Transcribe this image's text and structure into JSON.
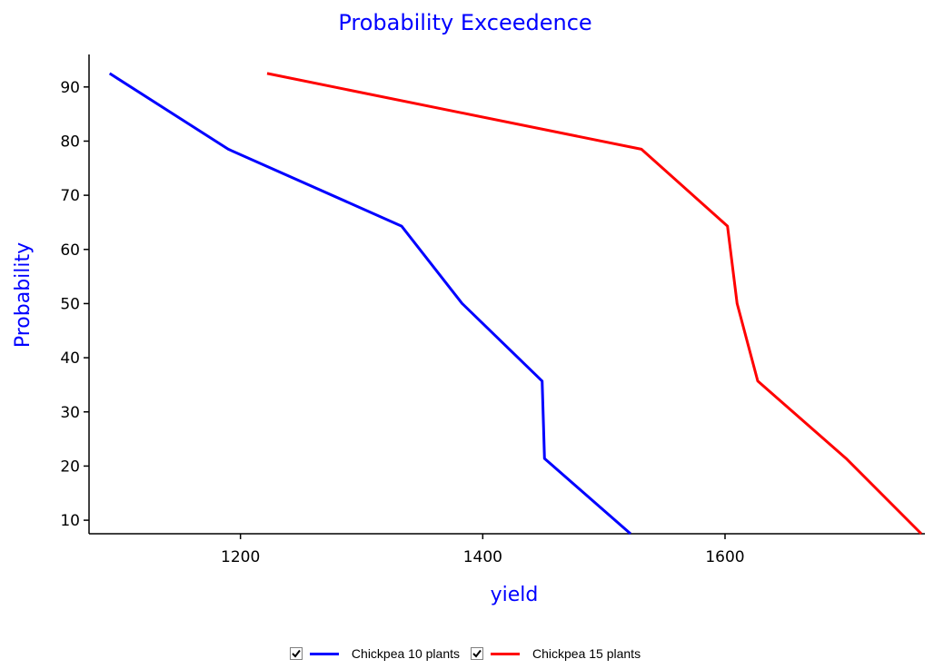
{
  "chart_data": {
    "type": "line",
    "title": "Probability Exceedence",
    "xlabel": "yield",
    "ylabel": "Probability",
    "xlim": [
      1075,
      1765
    ],
    "ylim": [
      7.5,
      96
    ],
    "xticks": [
      1200,
      1400,
      1600
    ],
    "yticks": [
      10,
      20,
      30,
      40,
      50,
      60,
      70,
      80,
      90
    ],
    "grid": false,
    "legend_position": "bottom",
    "series": [
      {
        "name": "Chickpea 10 plants",
        "color": "#0000ff",
        "checked": true,
        "points": [
          [
            1092,
            92.5
          ],
          [
            1190,
            78.5
          ],
          [
            1333,
            64.3
          ],
          [
            1383,
            50.0
          ],
          [
            1449,
            35.7
          ],
          [
            1450,
            28.6
          ],
          [
            1451,
            21.4
          ],
          [
            1522,
            7.5
          ]
        ]
      },
      {
        "name": "Chickpea 15 plants",
        "color": "#ff0000",
        "checked": true,
        "points": [
          [
            1222,
            92.5
          ],
          [
            1531,
            78.5
          ],
          [
            1602,
            64.3
          ],
          [
            1610,
            50.0
          ],
          [
            1627,
            35.7
          ],
          [
            1700,
            21.4
          ],
          [
            1762,
            7.5
          ]
        ]
      }
    ]
  }
}
